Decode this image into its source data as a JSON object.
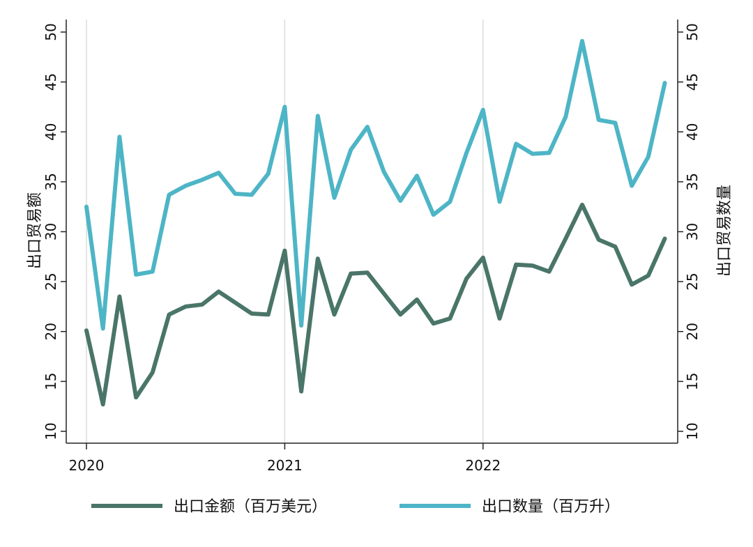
{
  "colors": {
    "amount": "#4a7569",
    "quantity": "#4db5c6",
    "grid": "#dcdcdc",
    "axis": "#222222"
  },
  "chart_data": {
    "type": "line",
    "x_ticks": [
      "2020",
      "2021",
      "2022"
    ],
    "y_ticks": [
      10,
      15,
      20,
      25,
      30,
      35,
      40,
      45,
      50
    ],
    "ylim": [
      10,
      50
    ],
    "ylabel_left": "出口贸易额",
    "ylabel_right": "出口贸易数量",
    "grid": "vertical at year ticks",
    "legend_position": "bottom",
    "x": [
      "2020-01",
      "2020-02",
      "2020-03",
      "2020-04",
      "2020-05",
      "2020-06",
      "2020-07",
      "2020-08",
      "2020-09",
      "2020-10",
      "2020-11",
      "2020-12",
      "2021-01",
      "2021-02",
      "2021-03",
      "2021-04",
      "2021-05",
      "2021-06",
      "2021-07",
      "2021-08",
      "2021-09",
      "2021-10",
      "2021-11",
      "2021-12",
      "2022-01",
      "2022-02",
      "2022-03",
      "2022-04",
      "2022-05",
      "2022-06",
      "2022-07",
      "2022-08",
      "2022-09",
      "2022-10",
      "2022-11",
      "2022-12"
    ],
    "series": [
      {
        "name": "出口金额（百万美元）",
        "color_key": "amount",
        "values": [
          20.1,
          12.7,
          23.5,
          13.4,
          15.9,
          21.7,
          22.5,
          22.7,
          24.0,
          22.9,
          21.8,
          21.7,
          28.1,
          14.0,
          27.3,
          21.7,
          25.8,
          25.9,
          23.8,
          21.7,
          23.2,
          20.8,
          21.3,
          25.3,
          27.4,
          21.3,
          26.7,
          26.6,
          26.0,
          29.3,
          32.7,
          29.2,
          28.5,
          24.7,
          25.6,
          29.3
        ]
      },
      {
        "name": "出口数量（百万升）",
        "color_key": "quantity",
        "values": [
          32.5,
          20.3,
          39.5,
          25.7,
          26.0,
          33.7,
          34.6,
          35.2,
          35.9,
          33.8,
          33.7,
          35.8,
          42.5,
          20.6,
          41.6,
          33.4,
          38.2,
          40.5,
          36.0,
          33.1,
          35.6,
          31.7,
          33.0,
          37.9,
          42.2,
          33.0,
          38.8,
          37.8,
          37.9,
          41.5,
          49.1,
          41.2,
          40.9,
          34.6,
          37.5,
          44.9
        ]
      }
    ]
  }
}
